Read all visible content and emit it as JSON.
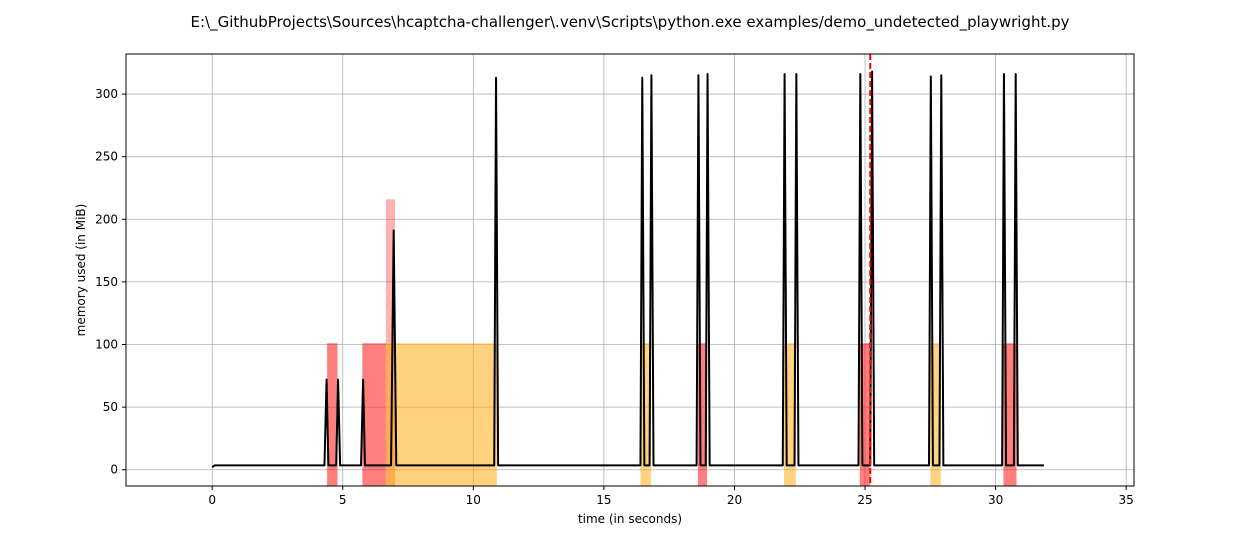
{
  "chart_data": {
    "type": "line",
    "title": "E:\\_GithubProjects\\Sources\\hcaptcha-challenger\\.venv\\Scripts\\python.exe examples/demo_undetected_playwright.py",
    "xlabel": "time (in seconds)",
    "ylabel": "memory used (in MiB)",
    "xlim": [
      -3.3,
      35.3
    ],
    "ylim": [
      -13,
      332
    ],
    "grid": true,
    "xticks": [
      0,
      5,
      10,
      15,
      20,
      25,
      30,
      35
    ],
    "yticks": [
      0,
      50,
      100,
      150,
      200,
      250,
      300
    ],
    "series": [
      {
        "color": "#000000",
        "x": [
          0,
          0.1,
          0.3,
          4.3,
          4.38,
          4.45,
          4.75,
          4.82,
          4.9,
          5.7,
          5.78,
          5.85,
          6.85,
          6.95,
          7.05,
          10.8,
          10.87,
          10.95,
          16.4,
          16.47,
          16.55,
          16.75,
          16.82,
          16.9,
          18.55,
          18.62,
          18.7,
          18.9,
          18.97,
          19.05,
          21.85,
          21.92,
          22.0,
          22.3,
          22.37,
          22.45,
          24.75,
          24.82,
          24.9,
          25.2,
          25.27,
          25.35,
          27.45,
          27.52,
          27.6,
          27.85,
          27.92,
          28.0,
          30.25,
          30.32,
          30.4,
          30.7,
          30.77,
          30.85,
          31.85
        ],
        "values": [
          2,
          3.5,
          3.5,
          3.5,
          72,
          3.5,
          3.5,
          72,
          3.5,
          3.5,
          72,
          3.5,
          3.5,
          191,
          3.5,
          3.5,
          313,
          3.5,
          3.5,
          313,
          3.5,
          3.5,
          315,
          3.5,
          3.5,
          315,
          3.5,
          3.5,
          316,
          3.5,
          3.5,
          316,
          3.5,
          3.5,
          316,
          3.5,
          3.5,
          316,
          3.5,
          3.5,
          318,
          3.5,
          3.5,
          314,
          3.5,
          3.5,
          315,
          3.5,
          3.5,
          316,
          3.5,
          3.5,
          316,
          3.5,
          3.5
        ]
      }
    ],
    "spans": [
      {
        "x0": 4.4,
        "x1": 4.8,
        "y0": -13,
        "y1": 101,
        "color": "#ff0000",
        "opacity": 0.5
      },
      {
        "x0": 5.75,
        "x1": 6.65,
        "y0": -13,
        "y1": 101,
        "color": "#ff0000",
        "opacity": 0.5
      },
      {
        "x0": 6.65,
        "x1": 7.0,
        "y0": -13,
        "y1": 216,
        "color": "#ff0000",
        "opacity": 0.3
      },
      {
        "x0": 6.65,
        "x1": 10.9,
        "y0": -13,
        "y1": 101,
        "color": "#ffa500",
        "opacity": 0.5
      },
      {
        "x0": 16.4,
        "x1": 16.8,
        "y0": -13,
        "y1": 101,
        "color": "#ffa500",
        "opacity": 0.5
      },
      {
        "x0": 18.6,
        "x1": 18.95,
        "y0": -13,
        "y1": 101,
        "color": "#ff0000",
        "opacity": 0.5
      },
      {
        "x0": 21.9,
        "x1": 22.35,
        "y0": -13,
        "y1": 101,
        "color": "#ffa500",
        "opacity": 0.5
      },
      {
        "x0": 24.8,
        "x1": 25.2,
        "y0": -13,
        "y1": 101,
        "color": "#ff0000",
        "opacity": 0.5
      },
      {
        "x0": 27.5,
        "x1": 27.9,
        "y0": -13,
        "y1": 101,
        "color": "#ffa500",
        "opacity": 0.5
      },
      {
        "x0": 30.3,
        "x1": 30.8,
        "y0": -13,
        "y1": 101,
        "color": "#ff0000",
        "opacity": 0.5
      }
    ],
    "vline": {
      "x": 25.2,
      "color": "#ff0000",
      "style": "dashed"
    }
  }
}
